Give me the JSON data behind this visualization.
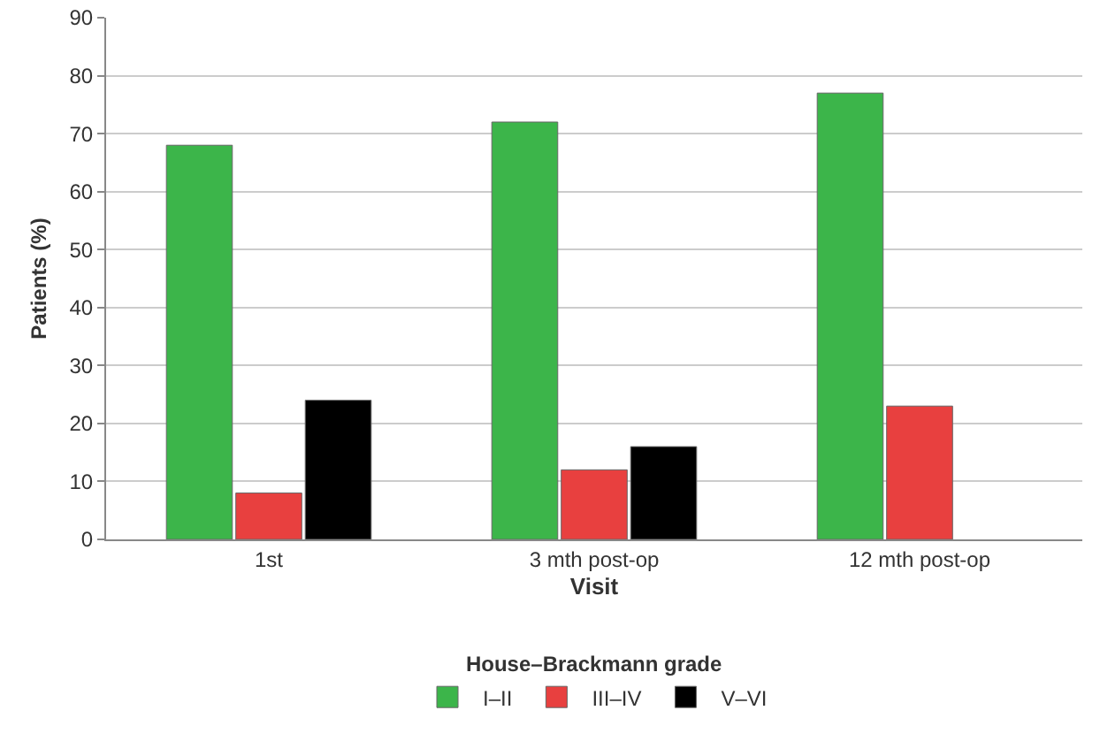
{
  "chart_data": {
    "type": "bar",
    "xlabel": "Visit",
    "ylabel": "Patients (%)",
    "legend_title": "House–Brackmann grade",
    "categories": [
      "1st",
      "3 mth post-op",
      "12 mth post-op"
    ],
    "series": [
      {
        "name": "I–II",
        "color": "#3cb54a",
        "values": [
          68,
          72,
          77
        ]
      },
      {
        "name": "III–IV",
        "color": "#e8403f",
        "values": [
          8,
          12,
          23
        ]
      },
      {
        "name": "V–VI",
        "color": "#000000",
        "values": [
          24,
          16,
          null
        ]
      }
    ],
    "ylim": [
      0,
      90
    ],
    "yticks": [
      0,
      10,
      20,
      30,
      40,
      50,
      60,
      70,
      80,
      90
    ],
    "grid": "y",
    "legend": "bottom"
  }
}
